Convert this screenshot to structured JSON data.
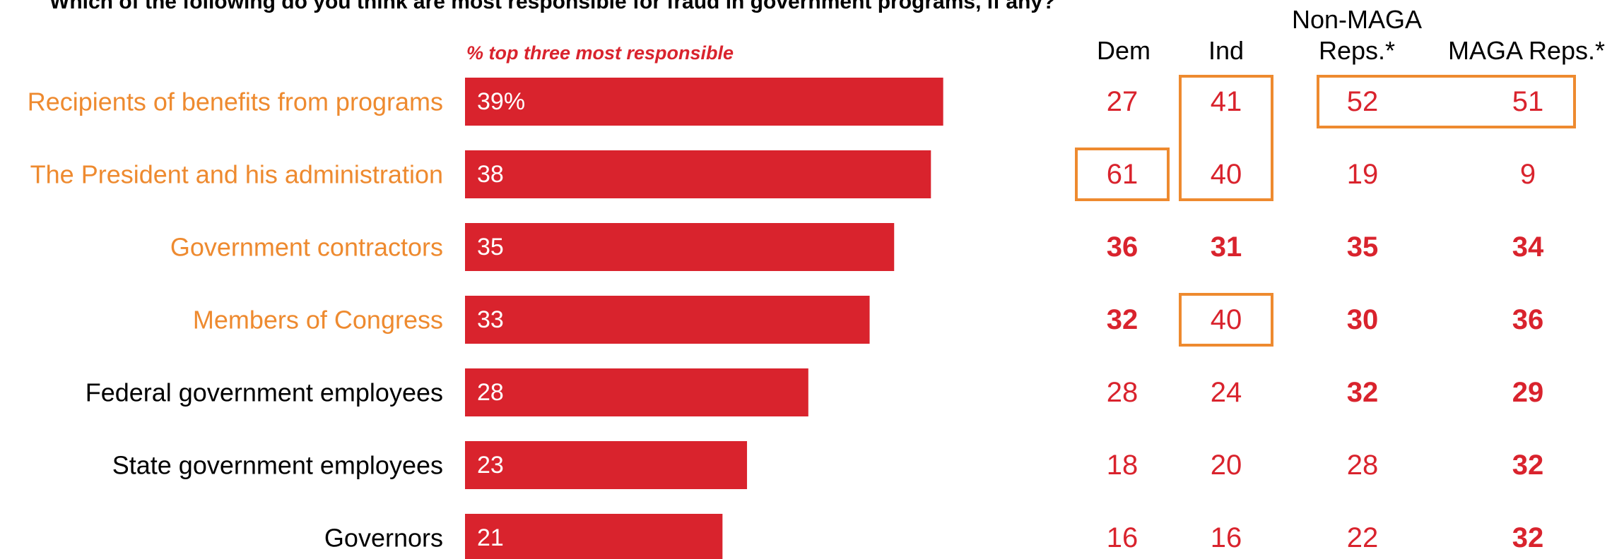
{
  "question": "Which of the following do you think are most responsible for fraud in government programs, if any?",
  "subtitle": "% top three most responsible",
  "columns": [
    {
      "key": "dem",
      "label": "Dem"
    },
    {
      "key": "ind",
      "label": "Ind"
    },
    {
      "key": "nonmaga",
      "label": "Non-MAGA\nReps.*"
    },
    {
      "key": "maga",
      "label": "MAGA Reps.*"
    }
  ],
  "colors": {
    "bar": "#d9232d",
    "highlight_label": "#ee8a2f",
    "normal_label": "#000000",
    "box": "#ee8a2f",
    "cell_text": "#d9232d"
  },
  "chart_data": {
    "type": "bar",
    "orientation": "horizontal",
    "title": "Which of the following do you think are most responsible for fraud in government programs, if any?",
    "subtitle": "% top three most responsible",
    "categories": [
      "Recipients of benefits from programs",
      "The President and his administration",
      "Government contractors",
      "Members of Congress",
      "Federal government employees",
      "State government employees",
      "Governors"
    ],
    "values": [
      39,
      38,
      35,
      33,
      28,
      23,
      21
    ],
    "value_labels": [
      "39%",
      "38",
      "35",
      "33",
      "28",
      "23",
      "21"
    ],
    "highlight_categories": [
      true,
      true,
      true,
      true,
      false,
      false,
      false
    ],
    "xlim": [
      0,
      45
    ],
    "grid": false,
    "table": {
      "dem": [
        27,
        61,
        36,
        32,
        28,
        18,
        16
      ],
      "ind": [
        41,
        40,
        31,
        40,
        24,
        20,
        16
      ],
      "nonmaga": [
        52,
        19,
        35,
        30,
        32,
        28,
        22
      ],
      "maga": [
        51,
        9,
        34,
        36,
        29,
        32,
        32
      ]
    },
    "bold": {
      "dem": [
        false,
        false,
        true,
        true,
        false,
        false,
        false
      ],
      "ind": [
        false,
        false,
        true,
        false,
        false,
        false,
        false
      ],
      "nonmaga": [
        false,
        false,
        true,
        true,
        true,
        false,
        false
      ],
      "maga": [
        false,
        false,
        true,
        true,
        true,
        true,
        true
      ]
    },
    "boxes": [
      {
        "column": "ind",
        "rows": [
          0,
          1
        ]
      },
      {
        "column": "dem",
        "rows": [
          1,
          1
        ]
      },
      {
        "column": "ind",
        "rows": [
          3,
          3
        ]
      },
      {
        "column": "nonmaga-maga",
        "rows": [
          0,
          0
        ]
      }
    ]
  }
}
